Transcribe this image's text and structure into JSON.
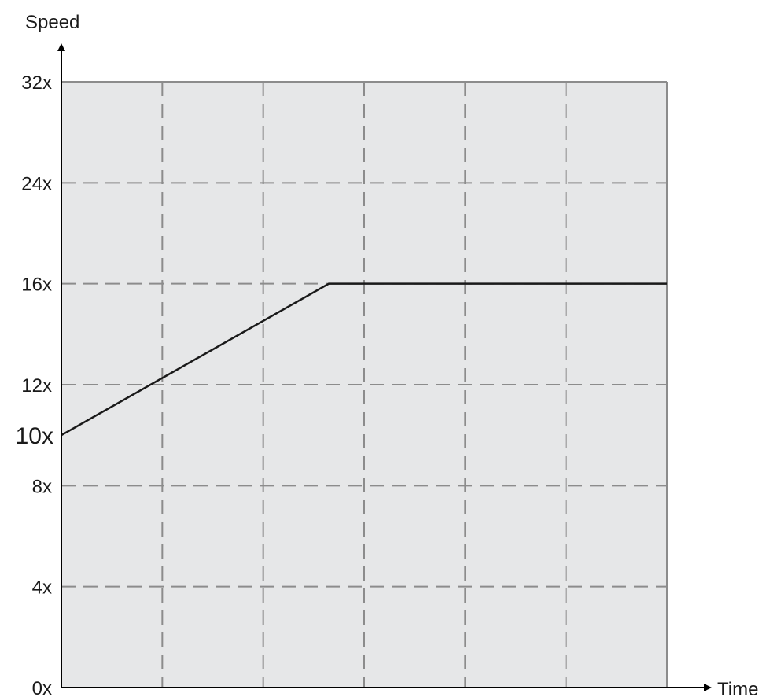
{
  "chart_data": {
    "type": "line",
    "xlabel": "Time",
    "ylabel": "Speed",
    "x_tick_labels": [],
    "y_ticks": [
      {
        "value": 0,
        "label": "0x"
      },
      {
        "value": 4,
        "label": "4x"
      },
      {
        "value": 8,
        "label": "8x"
      },
      {
        "value": 10,
        "label": "10x",
        "emphasized": true
      },
      {
        "value": 12,
        "label": "12x"
      },
      {
        "value": 16,
        "label": "16x"
      },
      {
        "value": 24,
        "label": "24x"
      },
      {
        "value": 32,
        "label": "32x"
      }
    ],
    "y_scale": "piecewise",
    "grid": true,
    "legend": "none",
    "series": [
      {
        "points": [
          {
            "x": 0,
            "y": 10
          },
          {
            "x": 2.65,
            "y": 16
          },
          {
            "x": 6,
            "y": 16
          }
        ]
      }
    ],
    "colors": {
      "plot_background": "#e6e7e8",
      "grid": "#8c8c8c",
      "line": "#1a1a1a",
      "axis": "#000000"
    }
  }
}
